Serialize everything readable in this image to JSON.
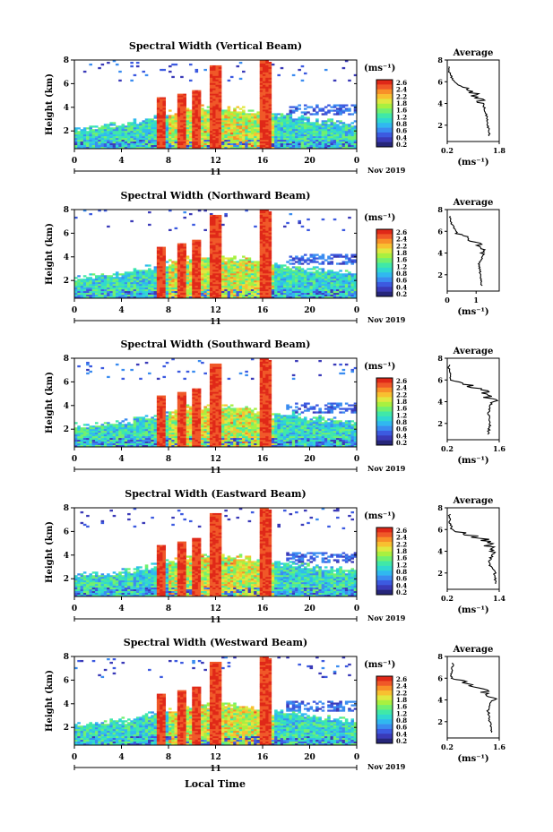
{
  "colors": {
    "colormap": [
      "#26267a",
      "#3a3ab8",
      "#3c5ae0",
      "#3a8cf0",
      "#30b8f0",
      "#30d8d0",
      "#40e8a8",
      "#70f070",
      "#a8f040",
      "#e0e840",
      "#f8c030",
      "#f89028",
      "#f05828",
      "#e02818"
    ],
    "axis": "#000000",
    "profile": "#000000"
  },
  "xaxis": {
    "ticks": [
      "0",
      "4",
      "8",
      "12",
      "16",
      "20",
      "0"
    ],
    "day_label": "11",
    "date_label": "Nov 2019",
    "label": "Local Time"
  },
  "colorbar": {
    "unit": "(ms⁻¹)",
    "ticks": [
      "2.6",
      "2.4",
      "2.2",
      "1.8",
      "1.6",
      "1.2",
      "0.8",
      "0.6",
      "0.4",
      "0.2"
    ]
  },
  "panels": [
    {
      "title": "Spectral Width (Vertical Beam)",
      "ylabel": "Height (km)",
      "yticks": [
        "2",
        "4",
        "6",
        "8"
      ],
      "avg_title": "Average",
      "avg_xticks": [
        "0.2",
        "1.8"
      ],
      "avg_xlabel": "(ms⁻¹)"
    },
    {
      "title": "Spectral Width (Northward Beam)",
      "ylabel": "Height (km)",
      "yticks": [
        "2",
        "4",
        "6",
        "8"
      ],
      "avg_title": "Average",
      "avg_xticks": [
        "0",
        "1"
      ],
      "avg_xlabel": "(ms⁻¹)"
    },
    {
      "title": "Spectral Width (Southward Beam)",
      "ylabel": "Height (km)",
      "yticks": [
        "2",
        "4",
        "6",
        "8"
      ],
      "avg_title": "Average",
      "avg_xticks": [
        "0.2",
        "1.6"
      ],
      "avg_xlabel": "(ms⁻¹)"
    },
    {
      "title": "Spectral Width (Eastward Beam)",
      "ylabel": "Height (km)",
      "yticks": [
        "2",
        "4",
        "6",
        "8"
      ],
      "avg_title": "Average",
      "avg_xticks": [
        "0.2",
        "1.4"
      ],
      "avg_xlabel": "(ms⁻¹)"
    },
    {
      "title": "Spectral Width (Westward Beam)",
      "ylabel": "Height (km)",
      "yticks": [
        "2",
        "4",
        "6",
        "8"
      ],
      "avg_title": "Average",
      "avg_xticks": [
        "0.2",
        "1.6"
      ],
      "avg_xlabel": "(ms⁻¹)"
    }
  ],
  "chart_data": [
    {
      "type": "heatmap",
      "title": "Spectral Width (Vertical Beam)",
      "ylabel": "Height (km)",
      "xlabel": "Local Time",
      "xlim": [
        0,
        24
      ],
      "ylim": [
        0.5,
        8
      ],
      "colorbar_range": [
        0,
        2.8
      ],
      "height_km": [
        1,
        2,
        3,
        4,
        5,
        6,
        7
      ],
      "avg_profile_width": [
        1.5,
        1.45,
        1.4,
        1.3,
        1.0,
        0.4,
        0.25
      ],
      "avg_xlim": [
        0.2,
        1.8
      ]
    },
    {
      "type": "heatmap",
      "title": "Spectral Width (Northward Beam)",
      "ylabel": "Height (km)",
      "xlabel": "Local Time",
      "xlim": [
        0,
        24
      ],
      "ylim": [
        0.5,
        8
      ],
      "colorbar_range": [
        0,
        2.8
      ],
      "height_km": [
        1,
        2,
        3,
        4,
        5,
        6,
        7
      ],
      "avg_profile_width": [
        1.2,
        1.15,
        1.1,
        1.3,
        1.0,
        0.3,
        0.1
      ],
      "avg_xlim": [
        0,
        1.8
      ]
    },
    {
      "type": "heatmap",
      "title": "Spectral Width (Southward Beam)",
      "ylabel": "Height (km)",
      "xlabel": "Local Time",
      "xlim": [
        0,
        24
      ],
      "ylim": [
        0.5,
        8
      ],
      "colorbar_range": [
        0,
        2.8
      ],
      "height_km": [
        1,
        2,
        3,
        4,
        5,
        6,
        7
      ],
      "avg_profile_width": [
        1.3,
        1.35,
        1.3,
        1.4,
        1.2,
        0.3,
        0.25
      ],
      "avg_xlim": [
        0.2,
        1.6
      ]
    },
    {
      "type": "heatmap",
      "title": "Spectral Width (Eastward Beam)",
      "ylabel": "Height (km)",
      "xlabel": "Local Time",
      "xlim": [
        0,
        24
      ],
      "ylim": [
        0.5,
        8
      ],
      "colorbar_range": [
        0,
        2.8
      ],
      "height_km": [
        1,
        2,
        3,
        4,
        5,
        6,
        7
      ],
      "avg_profile_width": [
        1.3,
        1.3,
        1.15,
        1.3,
        1.1,
        0.3,
        0.25
      ],
      "avg_xlim": [
        0.2,
        1.4
      ]
    },
    {
      "type": "heatmap",
      "title": "Spectral Width (Westward Beam)",
      "ylabel": "Height (km)",
      "xlabel": "Local Time",
      "xlim": [
        0,
        24
      ],
      "ylim": [
        0.5,
        8
      ],
      "colorbar_range": [
        0,
        2.8
      ],
      "height_km": [
        1,
        2,
        3,
        4,
        5,
        6,
        7
      ],
      "avg_profile_width": [
        1.4,
        1.35,
        1.3,
        1.4,
        1.2,
        0.3,
        0.35
      ],
      "avg_xlim": [
        0.2,
        1.6
      ]
    }
  ]
}
